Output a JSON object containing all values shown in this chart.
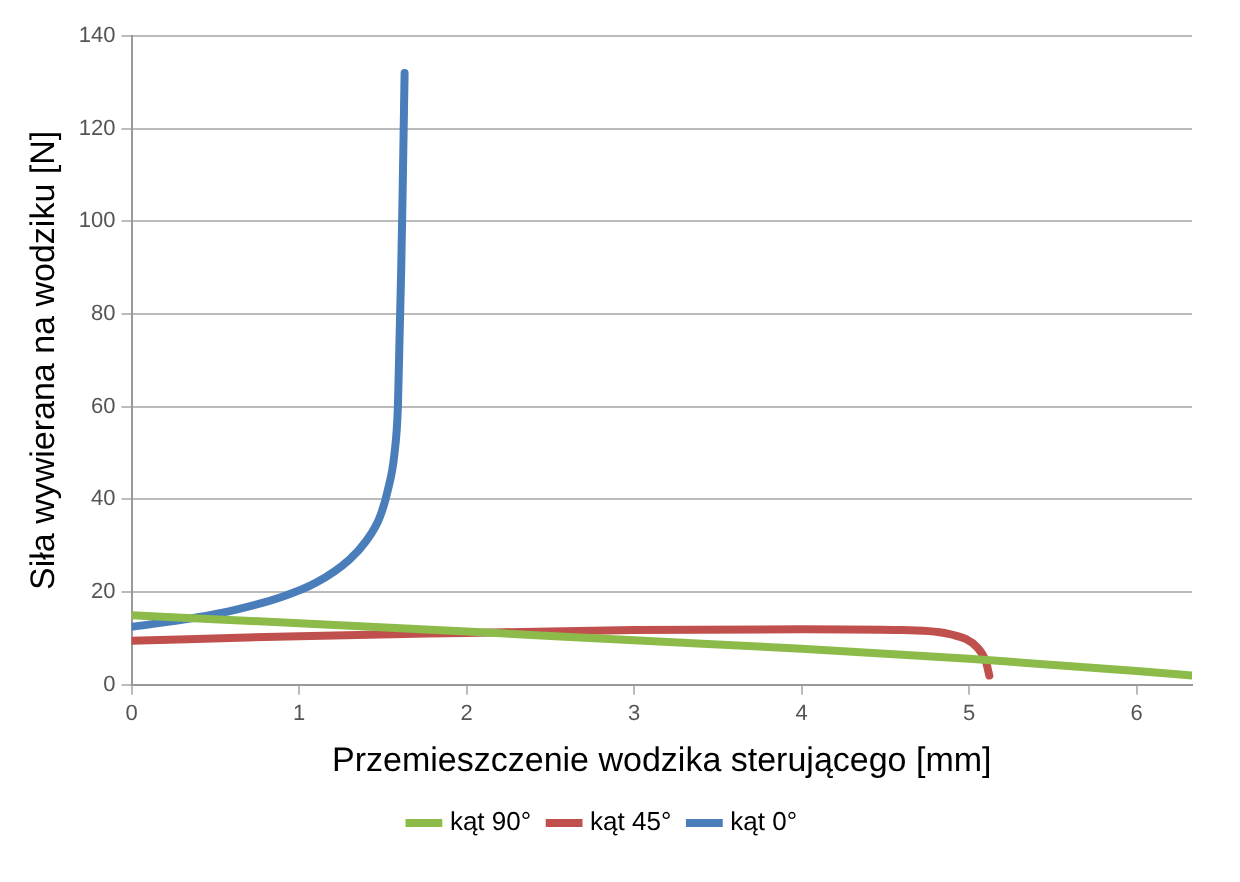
{
  "chart_data": {
    "type": "line",
    "xlabel": "Przemieszczenie wodzika sterującego [mm]",
    "ylabel": "Siła wywierana na wodziku [N]",
    "xlim": [
      0,
      6.33
    ],
    "xticks": [
      0,
      1,
      2,
      3,
      4,
      5,
      6
    ],
    "ylim": [
      0,
      140
    ],
    "yticks": [
      0,
      20,
      40,
      60,
      80,
      100,
      120,
      140
    ],
    "grid": "y",
    "legend": "bottom",
    "marker": "none",
    "line_style": "solid",
    "series": [
      {
        "name": "kąt 90°",
        "color": "#8cbb4a",
        "x": [
          0,
          1,
          2,
          3,
          4,
          5,
          6,
          6.33
        ],
        "values": [
          15,
          13.3,
          11.5,
          9.6,
          7.8,
          5.6,
          3,
          2
        ]
      },
      {
        "name": "kąt 45°",
        "color": "#c0504d",
        "x": [
          0,
          1,
          2,
          3,
          4,
          4.6,
          4.9,
          5.05,
          5.1,
          5.12
        ],
        "values": [
          9.5,
          10.5,
          11.2,
          11.8,
          12,
          11.8,
          10.8,
          8,
          5,
          2
        ]
      },
      {
        "name": "kąt 0°",
        "color": "#4a7ebb",
        "x": [
          0,
          0.3,
          0.6,
          0.9,
          1.1,
          1.3,
          1.4,
          1.48,
          1.53,
          1.57,
          1.59,
          1.6,
          1.61,
          1.62,
          1.63
        ],
        "values": [
          12.5,
          14,
          16,
          19,
          22,
          27,
          31,
          36,
          42,
          50,
          60,
          75,
          90,
          110,
          132
        ]
      }
    ]
  }
}
